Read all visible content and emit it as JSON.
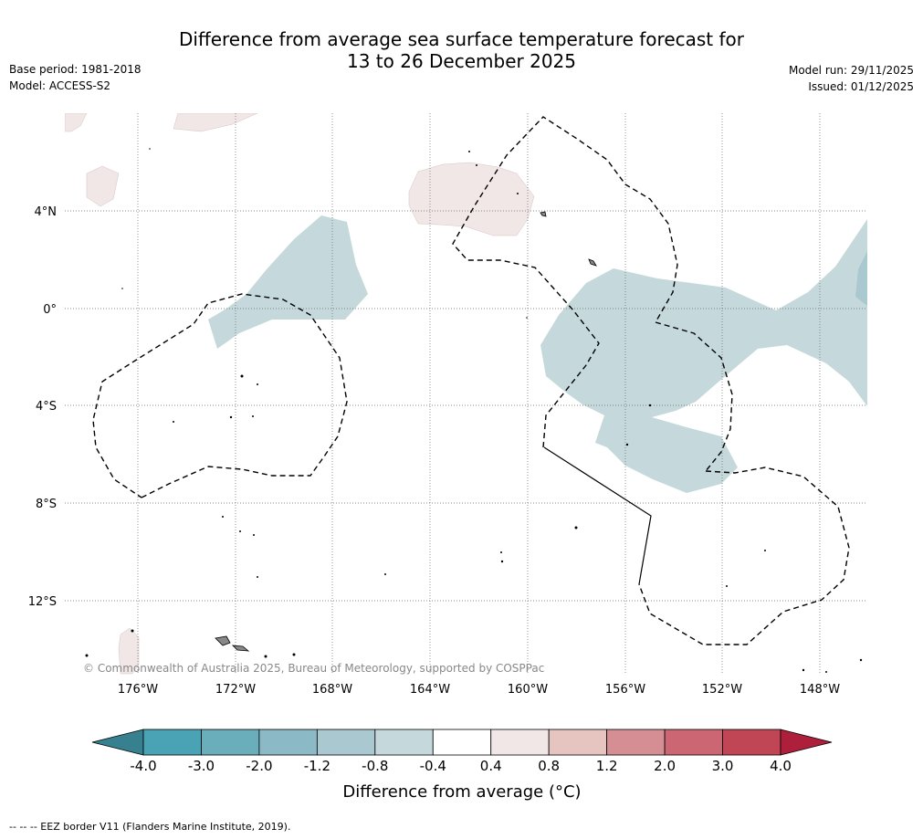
{
  "title_line1": "Difference from average sea surface temperature forecast for",
  "title_line2": "13 to 26 December 2025",
  "meta_left": {
    "base_period": "Base period: 1981-2018",
    "model": "Model: ACCESS-S2"
  },
  "meta_right": {
    "model_run": "Model run: 29/11/2025",
    "issued": "Issued: 01/12/2025"
  },
  "map": {
    "lat_labels": [
      "4°N",
      "0°",
      "4°S",
      "8°S",
      "12°S"
    ],
    "lon_labels": [
      "176°W",
      "172°W",
      "168°W",
      "164°W",
      "160°W",
      "156°W",
      "152°W",
      "148°W"
    ],
    "copyright": "© Commonwealth of Australia 2025, Bureau of Meteorology, supported by COSPPac"
  },
  "legend": {
    "label": "Difference from average (°C)",
    "ticks": [
      "-4.0",
      "-3.0",
      "-2.0",
      "-1.2",
      "-0.8",
      "-0.4",
      "0.4",
      "0.8",
      "1.2",
      "2.0",
      "3.0",
      "4.0"
    ],
    "colors": [
      "#4aa3b4",
      "#6aaebc",
      "#8bbac6",
      "#a9c8cf",
      "#c5d9dc",
      "#ffffff",
      "#f1e7e6",
      "#e6c5c1",
      "#d58e94",
      "#cb6672",
      "#c04555"
    ],
    "low_color": "#37808f",
    "high_color": "#ad1f3b"
  },
  "footer": "--  --  -- EEZ border V11 (Flanders Marine Institute, 2019)."
}
